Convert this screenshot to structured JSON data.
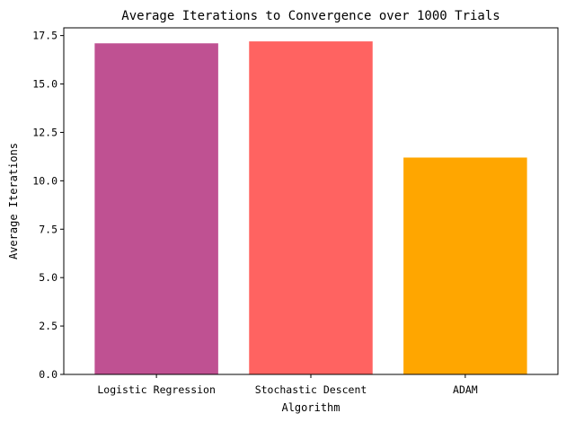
{
  "chart_data": {
    "type": "bar",
    "title": "Average Iterations to Convergence over 1000 Trials",
    "xlabel": "Algorithm",
    "ylabel": "Average Iterations",
    "categories": [
      "Logistic Regression",
      "Stochastic Descent",
      "ADAM"
    ],
    "values": [
      17.1,
      17.2,
      11.2
    ],
    "colors": [
      "#BF5192",
      "#FF6361",
      "#FFA600"
    ],
    "ylim": [
      0,
      17.9
    ],
    "yticks": [
      0,
      2.5,
      5,
      7.5,
      10,
      12.5,
      15,
      17.5
    ],
    "ytick_labels": [
      "0.0",
      "2.5",
      "5.0",
      "7.5",
      "10.0",
      "12.5",
      "15.0",
      "17.5"
    ],
    "grid": false,
    "legend": "none"
  }
}
